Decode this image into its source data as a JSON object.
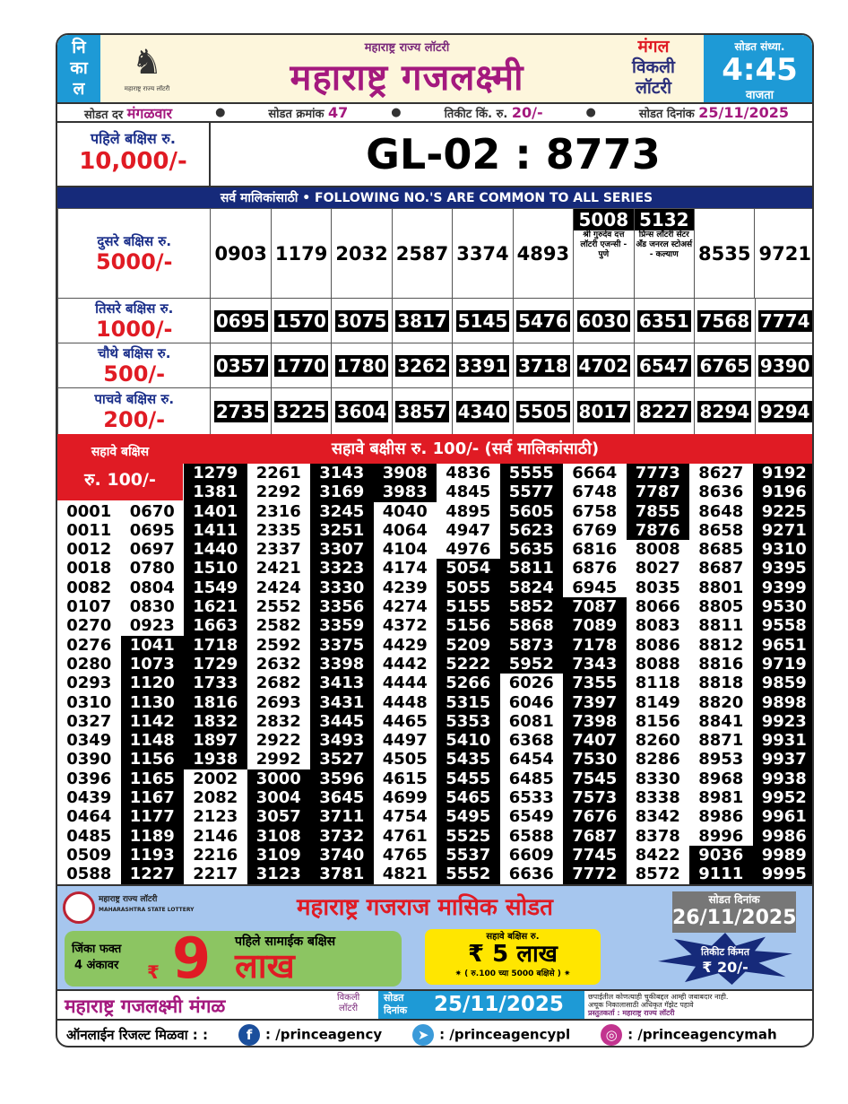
{
  "header": {
    "nikal": [
      "नि",
      "का",
      "ल"
    ],
    "logo_caption": "महाराष्ट्र राज्य लॉटरी",
    "subtitle": "महाराष्ट्र राज्य लॉटरी",
    "title": "महाराष्ट्र गजलक्ष्मी",
    "day": "मंगल",
    "weekly": "विकली",
    "lottery": "लॉटरी",
    "draw_label": "सोडत संध्या.",
    "draw_time": "4:45",
    "draw_suffix": "वाजता"
  },
  "info": {
    "day_label": "सोडत दर",
    "day": "मंगळवार",
    "draw_no_label": "सोडत क्रमांक",
    "draw_no": "47",
    "price_label": "तिकीट किं. रु.",
    "price": "20/-",
    "date_label": "सोडत दिनांक",
    "date": "25/11/2025"
  },
  "first_prize": {
    "label": "पहिले बक्षिस रु.",
    "amount": "10,000/-",
    "number": "GL-02 : 8773"
  },
  "banner": "सर्व मालिकांसाठी  •  FOLLOWING NO.'S ARE COMMON TO ALL SERIES",
  "second_prize": {
    "label": "दुसरे बक्षिस रु.",
    "amount": "5000/-",
    "numbers": [
      {
        "n": "0903"
      },
      {
        "n": "1179"
      },
      {
        "n": "2032"
      },
      {
        "n": "2587"
      },
      {
        "n": "3374"
      },
      {
        "n": "4893"
      },
      {
        "n": "5008",
        "agent": "श्री गुरुदेव दत्त लॉटरी एजन्सी - पुणे"
      },
      {
        "n": "5132",
        "agent": "प्रिन्स लॉटरी सेंटर अँड जनरल स्टोअर्स - कल्याण"
      },
      {
        "n": "8535"
      },
      {
        "n": "9721"
      }
    ]
  },
  "other_prizes": [
    {
      "label": "तिसरे बक्षिस रु.",
      "amount": "1000/-",
      "numbers": [
        "0695",
        "1570",
        "3075",
        "3817",
        "5145",
        "5476",
        "6030",
        "6351",
        "7568",
        "7774"
      ]
    },
    {
      "label": "चौथे बक्षिस रु.",
      "amount": "500/-",
      "numbers": [
        "0357",
        "1770",
        "1780",
        "3262",
        "3391",
        "3718",
        "4702",
        "6547",
        "6765",
        "9390"
      ]
    },
    {
      "label": "पाचवे बक्षिस रु.",
      "amount": "200/-",
      "numbers": [
        "2735",
        "3225",
        "3604",
        "3857",
        "4340",
        "5505",
        "8017",
        "8227",
        "8294",
        "9294"
      ]
    }
  ],
  "sixth_prize": {
    "label": "सहावे बक्षिस",
    "amount": "रु. 100/-",
    "title": "सहावे बक्षीस रु. 100/-  (सर्व मालिकांसाठी)",
    "columns": [
      [
        "0001",
        "0011",
        "0012",
        "0018",
        "0082",
        "0107",
        "0270",
        "0276",
        "0280",
        "0293",
        "0310",
        "0327",
        "0349",
        "0390",
        "0396",
        "0439",
        "0464",
        "0485",
        "0509",
        "0588"
      ],
      [
        "0670",
        "0695",
        "0697",
        "0780",
        "0804",
        "0830",
        "0923",
        "1041",
        "1073",
        "1120",
        "1130",
        "1142",
        "1148",
        "1156",
        "1165",
        "1167",
        "1177",
        "1189",
        "1193",
        "1227"
      ],
      [
        "1279",
        "1381",
        "1401",
        "1411",
        "1440",
        "1510",
        "1549",
        "1621",
        "1663",
        "1718",
        "1729",
        "1733",
        "1816",
        "1832",
        "1897",
        "1938",
        "2002",
        "2082",
        "2123",
        "2146",
        "2216",
        "2217"
      ],
      [
        "2261",
        "2292",
        "2316",
        "2335",
        "2337",
        "2421",
        "2424",
        "2552",
        "2582",
        "2592",
        "2632",
        "2682",
        "2693",
        "2832",
        "2922",
        "2992",
        "3000",
        "3004",
        "3057",
        "3108",
        "3109",
        "3123"
      ],
      [
        "3143",
        "3169",
        "3245",
        "3251",
        "3307",
        "3323",
        "3330",
        "3356",
        "3359",
        "3375",
        "3398",
        "3413",
        "3431",
        "3445",
        "3493",
        "3527",
        "3596",
        "3645",
        "3711",
        "3732",
        "3740",
        "3781"
      ],
      [
        "3908",
        "3983",
        "4040",
        "4064",
        "4104",
        "4174",
        "4239",
        "4274",
        "4372",
        "4429",
        "4442",
        "4444",
        "4448",
        "4465",
        "4497",
        "4505",
        "4615",
        "4699",
        "4754",
        "4761",
        "4765",
        "4821"
      ],
      [
        "4836",
        "4845",
        "4895",
        "4947",
        "4976",
        "5054",
        "5055",
        "5155",
        "5156",
        "5209",
        "5222",
        "5266",
        "5315",
        "5353",
        "5410",
        "5435",
        "5455",
        "5465",
        "5495",
        "5525",
        "5537",
        "5552"
      ],
      [
        "5555",
        "5577",
        "5605",
        "5623",
        "5635",
        "5811",
        "5824",
        "5852",
        "5868",
        "5873",
        "5952",
        "6026",
        "6046",
        "6081",
        "6368",
        "6454",
        "6485",
        "6533",
        "6549",
        "6588",
        "6609",
        "6636"
      ],
      [
        "6664",
        "6748",
        "6758",
        "6769",
        "6816",
        "6876",
        "6945",
        "7087",
        "7089",
        "7178",
        "7343",
        "7355",
        "7397",
        "7398",
        "7407",
        "7530",
        "7545",
        "7573",
        "7676",
        "7687",
        "7745",
        "7772"
      ],
      [
        "7773",
        "7787",
        "7855",
        "7876",
        "8008",
        "8027",
        "8035",
        "8066",
        "8083",
        "8086",
        "8088",
        "8118",
        "8149",
        "8156",
        "8260",
        "8286",
        "8330",
        "8338",
        "8342",
        "8378",
        "8422",
        "8572"
      ],
      [
        "8627",
        "8636",
        "8648",
        "8658",
        "8685",
        "8687",
        "8801",
        "8805",
        "8811",
        "8812",
        "8816",
        "8818",
        "8820",
        "8841",
        "8871",
        "8953",
        "8968",
        "8981",
        "8986",
        "8996",
        "9036",
        "9111"
      ],
      [
        "9192",
        "9196",
        "9225",
        "9271",
        "9310",
        "9395",
        "9399",
        "9530",
        "9558",
        "9651",
        "9719",
        "9859",
        "9898",
        "9923",
        "9931",
        "9937",
        "9938",
        "9952",
        "9961",
        "9986",
        "9989",
        "9995"
      ]
    ]
  },
  "promo": {
    "logo_text": "महाराष्ट्र राज्य लॉटरी",
    "logo_text_en": "MAHARASHTRA STATE LOTTERY",
    "title": "महाराष्ट्र गजराज मासिक सोडत",
    "date_label": "सोडत दिनांक",
    "date": "26/11/2025",
    "win_line1": "जिंका फक्त",
    "win_line2": "4 अंकावर",
    "rupee": "₹",
    "big_digit": "9",
    "first_common": "पहिले सामाईक बक्षिस",
    "lakh": "लाख",
    "sixth_label": "सहावे बक्षिस रु.",
    "sixth_amount": "₹ 5 लाख",
    "sixth_note": "✷ ( रु.100 च्या 5000 बक्षिसे ) ✷",
    "ticket_label": "तिकीट किंमत",
    "ticket_price": "₹ 20/-"
  },
  "footer": {
    "name": "महाराष्ट्र गजलक्ष्मी मंगळ",
    "weekly": "विकली",
    "lottery": "लॉटरी",
    "date_label1": "सोडत",
    "date_label2": "दिनांक",
    "date": "25/11/2025",
    "disclaimer1": "छपाईतील कोणत्याही चुकीबद्दल आम्ही जबाबदार नाही.",
    "disclaimer2": "अचूक निकालासाठी अधिकृत गॅझेट पहावे",
    "presenter": "प्रस्तुतकर्ता : महाराष्ट्र राज्य लॉटरी"
  },
  "social": {
    "label": "ऑनलाईन रिजल्ट मिळवा : :",
    "facebook": ": /princeagency",
    "telegram": ": /princeagencypl",
    "instagram": ": /princeagencymah"
  },
  "colors": {
    "blue": "#1e9ad6",
    "navy": "#162a7a",
    "red": "#e01b24",
    "magenta": "#a4197e"
  }
}
